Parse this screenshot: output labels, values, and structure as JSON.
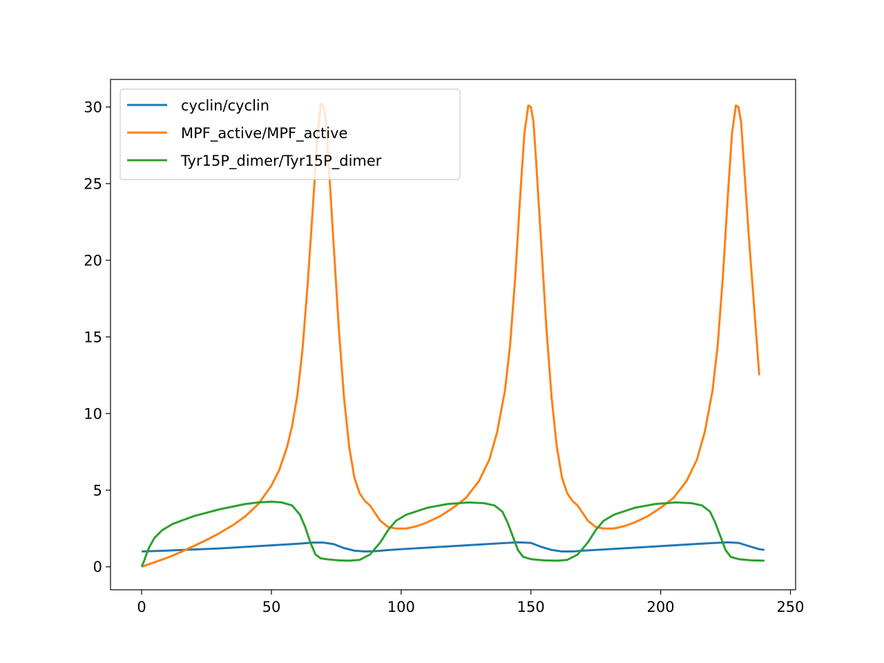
{
  "chart_data": {
    "type": "line",
    "title": "",
    "xlabel": "",
    "ylabel": "",
    "xlim": [
      -12,
      252
    ],
    "ylim": [
      -1.5,
      31.8
    ],
    "xticks": [
      0,
      50,
      100,
      150,
      200,
      250
    ],
    "yticks": [
      0,
      5,
      10,
      15,
      20,
      25,
      30
    ],
    "xtick_labels": [
      "0",
      "50",
      "100",
      "150",
      "200",
      "250"
    ],
    "ytick_labels": [
      "0",
      "5",
      "10",
      "15",
      "20",
      "25",
      "30"
    ],
    "grid": false,
    "legend_position": "top-left",
    "series": [
      {
        "name": "cyclin/cyclin",
        "color": "#1f77b4",
        "points": [
          [
            0,
            1.0
          ],
          [
            10,
            1.06
          ],
          [
            20,
            1.13
          ],
          [
            30,
            1.2
          ],
          [
            40,
            1.3
          ],
          [
            50,
            1.4
          ],
          [
            60,
            1.5
          ],
          [
            66,
            1.58
          ],
          [
            70,
            1.58
          ],
          [
            74,
            1.48
          ],
          [
            78,
            1.22
          ],
          [
            82,
            1.05
          ],
          [
            86,
            1.0
          ],
          [
            90,
            1.02
          ],
          [
            94,
            1.08
          ],
          [
            100,
            1.15
          ],
          [
            110,
            1.25
          ],
          [
            120,
            1.35
          ],
          [
            130,
            1.45
          ],
          [
            140,
            1.55
          ],
          [
            145,
            1.6
          ],
          [
            150,
            1.56
          ],
          [
            154,
            1.3
          ],
          [
            158,
            1.1
          ],
          [
            162,
            1.0
          ],
          [
            166,
            1.0
          ],
          [
            170,
            1.05
          ],
          [
            180,
            1.15
          ],
          [
            190,
            1.25
          ],
          [
            200,
            1.35
          ],
          [
            210,
            1.45
          ],
          [
            220,
            1.55
          ],
          [
            226,
            1.6
          ],
          [
            230,
            1.56
          ],
          [
            234,
            1.35
          ],
          [
            238,
            1.15
          ],
          [
            240,
            1.1
          ]
        ]
      },
      {
        "name": "MPF_active/MPF_active",
        "color": "#ff7f0e",
        "points": [
          [
            0,
            0.0
          ],
          [
            5,
            0.3
          ],
          [
            10,
            0.6
          ],
          [
            15,
            0.95
          ],
          [
            20,
            1.35
          ],
          [
            25,
            1.75
          ],
          [
            30,
            2.2
          ],
          [
            35,
            2.7
          ],
          [
            40,
            3.3
          ],
          [
            45,
            4.1
          ],
          [
            50,
            5.3
          ],
          [
            53,
            6.3
          ],
          [
            56,
            7.8
          ],
          [
            58,
            9.2
          ],
          [
            60,
            11.2
          ],
          [
            62,
            14.2
          ],
          [
            64,
            18.5
          ],
          [
            66,
            23.5
          ],
          [
            67.5,
            27.5
          ],
          [
            69,
            30.2
          ],
          [
            70,
            30.1
          ],
          [
            71,
            29.1
          ],
          [
            72,
            26.5
          ],
          [
            74,
            21.0
          ],
          [
            76,
            15.5
          ],
          [
            78,
            11.0
          ],
          [
            80,
            7.8
          ],
          [
            82,
            5.8
          ],
          [
            84,
            4.8
          ],
          [
            86,
            4.3
          ],
          [
            88,
            4.0
          ],
          [
            90,
            3.5
          ],
          [
            92,
            3.0
          ],
          [
            95,
            2.6
          ],
          [
            98,
            2.5
          ],
          [
            102,
            2.5
          ],
          [
            106,
            2.65
          ],
          [
            110,
            2.9
          ],
          [
            115,
            3.3
          ],
          [
            120,
            3.85
          ],
          [
            125,
            4.5
          ],
          [
            130,
            5.6
          ],
          [
            134,
            7.0
          ],
          [
            137,
            8.8
          ],
          [
            140,
            11.5
          ],
          [
            142,
            14.5
          ],
          [
            144,
            19.0
          ],
          [
            146,
            24.5
          ],
          [
            147.5,
            28.3
          ],
          [
            149,
            30.1
          ],
          [
            150,
            30.0
          ],
          [
            151,
            29.0
          ],
          [
            152,
            26.5
          ],
          [
            154,
            21.0
          ],
          [
            156,
            15.5
          ],
          [
            158,
            11.0
          ],
          [
            160,
            7.8
          ],
          [
            162,
            5.8
          ],
          [
            164,
            4.8
          ],
          [
            166,
            4.3
          ],
          [
            168,
            4.0
          ],
          [
            170,
            3.5
          ],
          [
            172,
            3.0
          ],
          [
            175,
            2.6
          ],
          [
            178,
            2.5
          ],
          [
            182,
            2.5
          ],
          [
            186,
            2.65
          ],
          [
            190,
            2.9
          ],
          [
            195,
            3.3
          ],
          [
            200,
            3.85
          ],
          [
            205,
            4.5
          ],
          [
            210,
            5.6
          ],
          [
            214,
            7.0
          ],
          [
            217,
            8.8
          ],
          [
            220,
            11.5
          ],
          [
            222,
            14.5
          ],
          [
            224,
            19.0
          ],
          [
            226,
            24.5
          ],
          [
            227.5,
            28.3
          ],
          [
            229,
            30.1
          ],
          [
            230,
            30.0
          ],
          [
            231,
            29.0
          ],
          [
            232,
            26.5
          ],
          [
            234,
            21.5
          ],
          [
            236,
            17.0
          ],
          [
            238,
            12.5
          ]
        ]
      },
      {
        "name": "Tyr15P_dimer/Tyr15P_dimer",
        "color": "#2ca02c",
        "points": [
          [
            0,
            0.0
          ],
          [
            1,
            0.4
          ],
          [
            2,
            0.9
          ],
          [
            3,
            1.3
          ],
          [
            5,
            1.9
          ],
          [
            8,
            2.4
          ],
          [
            12,
            2.8
          ],
          [
            20,
            3.3
          ],
          [
            30,
            3.75
          ],
          [
            40,
            4.1
          ],
          [
            45,
            4.2
          ],
          [
            50,
            4.25
          ],
          [
            54,
            4.2
          ],
          [
            58,
            4.0
          ],
          [
            61,
            3.4
          ],
          [
            63,
            2.6
          ],
          [
            65,
            1.6
          ],
          [
            67,
            0.8
          ],
          [
            69,
            0.55
          ],
          [
            72,
            0.48
          ],
          [
            76,
            0.42
          ],
          [
            80,
            0.4
          ],
          [
            84,
            0.45
          ],
          [
            88,
            0.8
          ],
          [
            92,
            1.6
          ],
          [
            95,
            2.4
          ],
          [
            98,
            3.0
          ],
          [
            102,
            3.4
          ],
          [
            110,
            3.85
          ],
          [
            118,
            4.1
          ],
          [
            126,
            4.2
          ],
          [
            132,
            4.15
          ],
          [
            136,
            4.0
          ],
          [
            139,
            3.6
          ],
          [
            141,
            2.9
          ],
          [
            143,
            2.0
          ],
          [
            145,
            1.1
          ],
          [
            147,
            0.65
          ],
          [
            150,
            0.5
          ],
          [
            155,
            0.42
          ],
          [
            160,
            0.4
          ],
          [
            164,
            0.45
          ],
          [
            168,
            0.8
          ],
          [
            172,
            1.6
          ],
          [
            175,
            2.4
          ],
          [
            178,
            3.0
          ],
          [
            182,
            3.4
          ],
          [
            190,
            3.85
          ],
          [
            198,
            4.1
          ],
          [
            206,
            4.2
          ],
          [
            212,
            4.15
          ],
          [
            216,
            4.0
          ],
          [
            219,
            3.6
          ],
          [
            221,
            2.9
          ],
          [
            223,
            2.0
          ],
          [
            225,
            1.1
          ],
          [
            227,
            0.65
          ],
          [
            230,
            0.5
          ],
          [
            235,
            0.42
          ],
          [
            240,
            0.4
          ]
        ]
      }
    ]
  }
}
